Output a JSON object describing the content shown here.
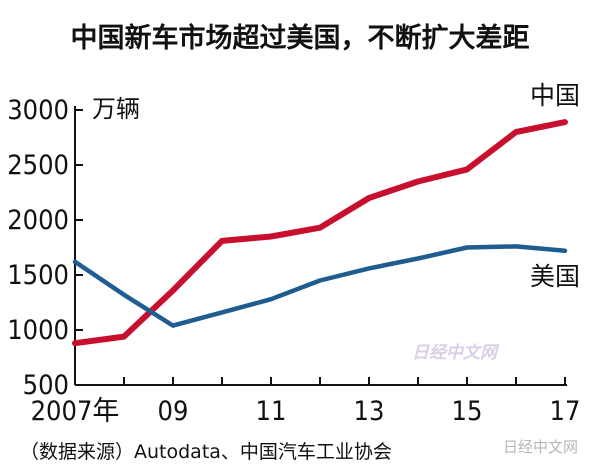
{
  "chart_data": {
    "type": "line",
    "title": "中国新车市场超过美国，不断扩大差距",
    "ylabel": "万辆",
    "xlabel": "",
    "ylim": [
      500,
      3000
    ],
    "xlim": [
      2007,
      2017
    ],
    "yticks": [
      500,
      1000,
      1500,
      2000,
      2500,
      3000
    ],
    "xtick_values": [
      2007,
      2009,
      2011,
      2013,
      2015,
      2017
    ],
    "xtick_labels": [
      "2007年",
      "09",
      "11",
      "13",
      "15",
      "17"
    ],
    "grid": false,
    "x": [
      2007,
      2008,
      2009,
      2010,
      2011,
      2012,
      2013,
      2014,
      2015,
      2016,
      2017
    ],
    "series": [
      {
        "name": "中国",
        "color": "#c8102e",
        "values": [
          880,
          940,
          1360,
          1810,
          1850,
          1930,
          2200,
          2350,
          2460,
          2800,
          2890
        ]
      },
      {
        "name": "美国",
        "color": "#1f5c8f",
        "values": [
          1620,
          1320,
          1040,
          1160,
          1280,
          1450,
          1560,
          1650,
          1750,
          1760,
          1720
        ]
      }
    ],
    "source": "（数据来源）Autodata、中国汽车工业协会"
  },
  "watermark": "日经中文网",
  "watermark_corner": "日经中文网"
}
